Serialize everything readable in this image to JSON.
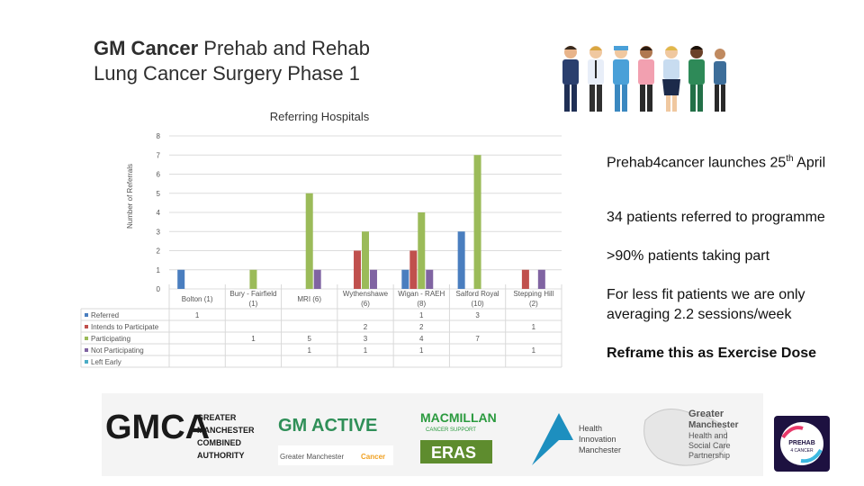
{
  "header": {
    "title_bold": "GM Cancer",
    "title_rest": "Prehab and Rehab",
    "title_line2": "Lung Cancer Surgery Phase 1"
  },
  "chart_data": {
    "type": "bar",
    "title": "Referring Hospitals",
    "ylabel": "Number of Referrals",
    "xlabel": "",
    "ylim": [
      0,
      8
    ],
    "yticks": [
      0,
      1,
      2,
      3,
      4,
      5,
      6,
      7,
      8
    ],
    "categories": [
      "Bolton (1)",
      "Bury - Fairfield (1)",
      "MRI (6)",
      "Wythenshawe (6)",
      "Wigan - RAEH (8)",
      "Salford Royal (10)",
      "Stepping Hill (2)"
    ],
    "series": [
      {
        "name": "Referred",
        "color": "#4a7ebf",
        "values": [
          1,
          null,
          null,
          null,
          1,
          3,
          null
        ],
        "labels": [
          "1",
          "",
          "",
          "",
          "1",
          "3",
          ""
        ]
      },
      {
        "name": "Intends to Participate",
        "color": "#c0504d",
        "values": [
          null,
          null,
          null,
          2,
          2,
          null,
          1
        ],
        "labels": [
          "",
          "",
          "",
          "2",
          "2",
          "",
          "1"
        ]
      },
      {
        "name": "Participating",
        "color": "#9bbb59",
        "values": [
          null,
          1,
          5,
          3,
          4,
          7,
          null
        ],
        "labels": [
          "",
          "1",
          "5",
          "3",
          "4",
          "7",
          ""
        ]
      },
      {
        "name": "Not Participating",
        "color": "#8064a2",
        "values": [
          null,
          null,
          1,
          1,
          1,
          null,
          1
        ],
        "labels": [
          "",
          "",
          "1",
          "1",
          "1",
          "",
          "1"
        ]
      },
      {
        "name": "Left Early",
        "color": "#4bacc6",
        "values": [
          null,
          null,
          null,
          null,
          null,
          null,
          null
        ],
        "labels": [
          "",
          "",
          "",
          "",
          "",
          "",
          ""
        ]
      }
    ]
  },
  "bullets": [
    {
      "text": "Prehab4cancer launches 25",
      "sup": "th",
      "tail": " April",
      "bold": false
    },
    {
      "text": "34 patients referred to programme",
      "sup": "",
      "tail": "",
      "bold": false
    },
    {
      "text": ">90% patients taking part",
      "sup": "",
      "tail": "",
      "bold": false
    },
    {
      "text": "For less fit patients we are only averaging 2.2 sessions/week",
      "sup": "",
      "tail": "",
      "bold": false
    },
    {
      "text": "Reframe this as Exercise Dose",
      "sup": "",
      "tail": "",
      "bold": true
    }
  ],
  "logos": {
    "gmca": "GMCA",
    "gmca_sub": [
      "GREATER",
      "MANCHESTER",
      "COMBINED",
      "AUTHORITY"
    ],
    "gm_active": "GM ACTIVE",
    "gm_cancer_prefix": "Greater Manchester",
    "gm_cancer_word": "Cancer",
    "macmillan": "MACMILLAN",
    "macmillan_sub": "CANCER SUPPORT",
    "eras": "ERAS",
    "hi_lines": [
      "Health",
      "Innovation",
      "Manchester"
    ],
    "gmhsc_lines": [
      "Greater",
      "Manchester",
      "Health and",
      "Social Care",
      "Partnership"
    ],
    "prehab_lines": [
      "PREHAB",
      "4 CANCER"
    ]
  },
  "colors": {
    "title": "#2e2e2e",
    "grid": "#d9d9d9",
    "gm_green": "#2f8f58",
    "gm_cancer": "#f0a020",
    "eras": "#5e8c2e"
  }
}
